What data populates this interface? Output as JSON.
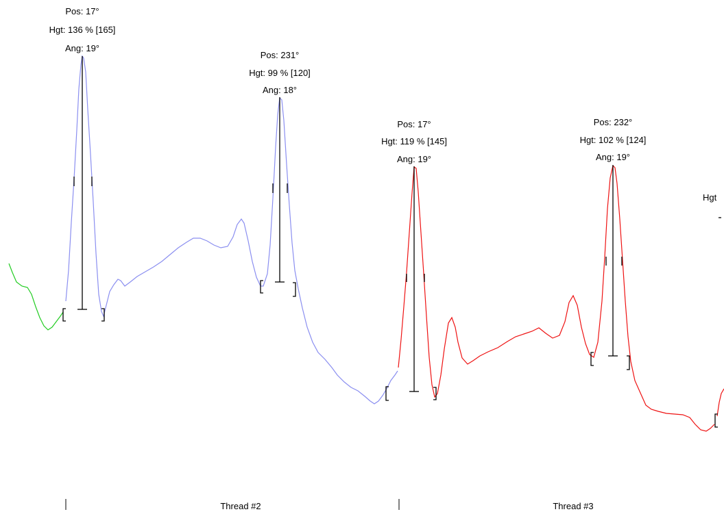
{
  "chart_data": {
    "type": "line",
    "title": "",
    "xlabel": "",
    "ylabel": "",
    "grid": false,
    "legend": "none",
    "threads": [
      {
        "label": "Thread #2"
      },
      {
        "label": "Thread #3"
      }
    ],
    "series": [
      {
        "color": "#22cc22",
        "segment": "thread-1-tail"
      },
      {
        "color": "#8a8ef0",
        "segment": "thread-2"
      },
      {
        "color": "#ee1111",
        "segment": "thread-3"
      },
      {
        "color": "#ee1111",
        "segment": "thread-4-start"
      }
    ],
    "peaks": [
      {
        "pos": "Pos: 17°",
        "hgt": "Hgt: 136 % [165]",
        "ang": "Ang: 19°"
      },
      {
        "pos": "Pos: 231°",
        "hgt": "Hgt: 99 % [120]",
        "ang": "Ang: 18°"
      },
      {
        "pos": "Pos: 17°",
        "hgt": "Hgt: 119 % [145]",
        "ang": "Ang: 19°"
      },
      {
        "pos": "Pos: 232°",
        "hgt": "Hgt: 102 % [124]",
        "ang": "Ang: 19°"
      },
      {
        "hgt": "Hgt"
      }
    ]
  }
}
